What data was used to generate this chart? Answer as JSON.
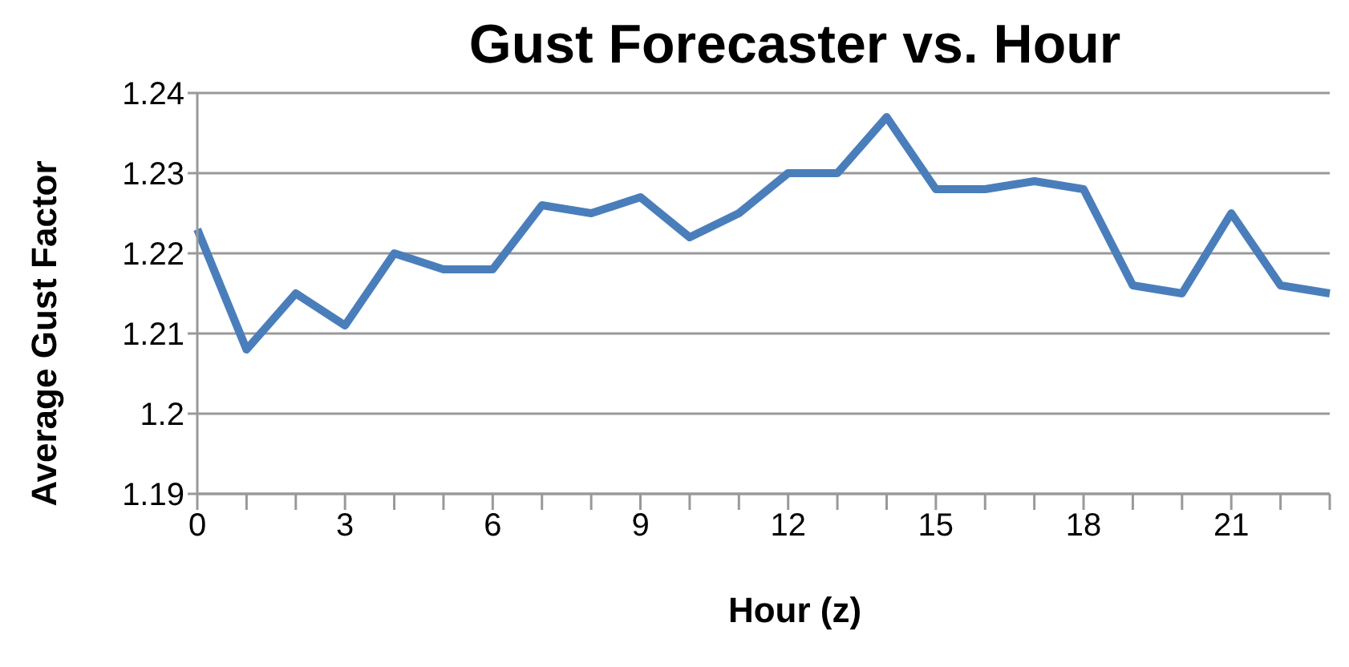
{
  "chart_data": {
    "type": "line",
    "title": "Gust Forecaster vs. Hour",
    "xlabel": "Hour (z)",
    "ylabel": "Average Gust Factor",
    "categories": [
      "0",
      null,
      null,
      "3",
      null,
      null,
      "6",
      null,
      null,
      "9",
      null,
      null,
      "12",
      null,
      null,
      "15",
      null,
      null,
      "18",
      null,
      null,
      "21",
      null,
      null
    ],
    "series": [
      {
        "color": "#4a7ebb",
        "values": [
          1.223,
          1.208,
          1.215,
          1.211,
          1.22,
          1.218,
          1.218,
          1.226,
          1.225,
          1.227,
          1.222,
          1.225,
          1.23,
          1.23,
          1.237,
          1.228,
          1.228,
          1.229,
          1.228,
          1.216,
          1.215,
          1.225,
          1.216,
          1.215
        ]
      }
    ],
    "ylim": [
      1.19,
      1.24
    ],
    "yticks": [
      1.19,
      1.2,
      1.21,
      1.22,
      1.23,
      1.24
    ],
    "grid": "y",
    "legend": false,
    "marker": "none",
    "line_style": "solid"
  }
}
